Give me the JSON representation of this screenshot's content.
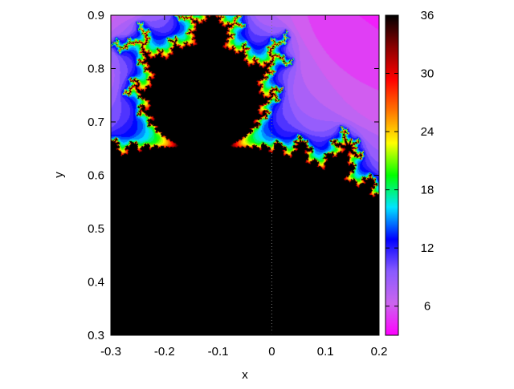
{
  "chart_data": {
    "type": "heatmap",
    "title": "",
    "xlabel": "x",
    "ylabel": "y",
    "xlim": [
      -0.3,
      0.2
    ],
    "ylim": [
      0.3,
      0.9
    ],
    "x_ticks": [
      -0.3,
      -0.2,
      -0.1,
      0,
      0.1,
      0.2
    ],
    "x_tick_labels": [
      "-0.3",
      "-0.2",
      "-0.1",
      "0",
      "0.1",
      "0.2"
    ],
    "y_ticks": [
      0.3,
      0.4,
      0.5,
      0.6,
      0.7,
      0.8,
      0.9
    ],
    "y_tick_labels": [
      "0.3",
      "0.4",
      "0.5",
      "0.6",
      "0.7",
      "0.8",
      "0.9"
    ],
    "colorbar": {
      "range": [
        3,
        36
      ],
      "ticks": [
        6,
        12,
        18,
        24,
        30,
        36
      ],
      "tick_labels": [
        "6",
        "12",
        "18",
        "24",
        "30",
        "36"
      ],
      "palette": "rainbow"
    },
    "reference_line": {
      "x": 0,
      "style": "dotted"
    },
    "grid": false,
    "legend": "none",
    "description_fn": "escape-time iteration count (Mandelbrot set, max 36 iterations)"
  },
  "colors": {
    "palette_stops": [
      "#ff00ff",
      "#cc66ee",
      "#8a5bff",
      "#0000ff",
      "#00e5ff",
      "#00ff00",
      "#ffff00",
      "#ff7700",
      "#ff0000",
      "#8b0000",
      "#000000"
    ],
    "axis": "#000000"
  }
}
